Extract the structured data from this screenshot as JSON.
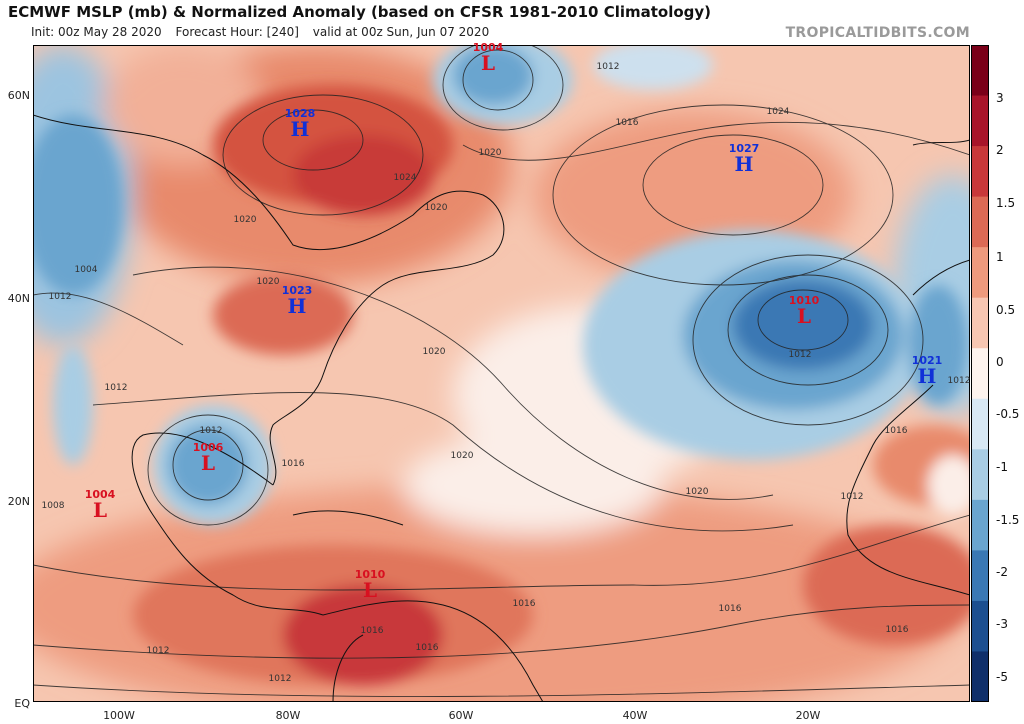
{
  "header": {
    "title": "ECMWF MSLP (mb) & Normalized Anomaly (based on CFSR 1981-2010 Climatology)",
    "init": "Init: 00z May 28 2020",
    "forecast_hour": "Forecast Hour: [240]",
    "valid": "valid at 00z Sun, Jun 07 2020",
    "brand": "TROPICALTIDBITS.COM"
  },
  "axes": {
    "lat_labels": [
      "60N",
      "40N",
      "20N",
      "EQ"
    ],
    "lon_labels": [
      "100W",
      "80W",
      "60W",
      "40W",
      "20W"
    ]
  },
  "colorbar": {
    "labels": [
      "3",
      "2",
      "1.5",
      "1",
      "0.5",
      "0",
      "-0.5",
      "-1",
      "-1.5",
      "-2",
      "-3",
      "-5"
    ],
    "colors": [
      "#7a0019",
      "#a8142a",
      "#c8383a",
      "#dc6a55",
      "#ee9a7d",
      "#f7c6b2",
      "#fdf3ee",
      "#d8e8f4",
      "#a9cde4",
      "#6aa5cf",
      "#3a78b4",
      "#1c4f90",
      "#0f2f6a"
    ]
  },
  "systems": [
    {
      "type": "H",
      "symbol": "H",
      "value": "1028"
    },
    {
      "type": "L",
      "symbol": "L",
      "value": "1004"
    },
    {
      "type": "H",
      "symbol": "H",
      "value": "1027"
    },
    {
      "type": "H",
      "symbol": "H",
      "value": "1023"
    },
    {
      "type": "L",
      "symbol": "L",
      "value": "1010"
    },
    {
      "type": "H",
      "symbol": "H",
      "value": "1021"
    },
    {
      "type": "L",
      "symbol": "L",
      "value": "1006"
    },
    {
      "type": "L",
      "symbol": "L",
      "value": "1004"
    },
    {
      "type": "L",
      "symbol": "L",
      "value": "1010"
    }
  ],
  "isobar_labels": [
    "1012",
    "1016",
    "1024",
    "1020",
    "1020",
    "1020",
    "1024",
    "1004",
    "1012",
    "1020",
    "1012",
    "1020",
    "1012",
    "1016",
    "1020",
    "1020",
    "1012",
    "1012",
    "1016",
    "1016",
    "1016",
    "1016",
    "1012",
    "1012",
    "1008",
    "1012",
    "1016",
    "1016"
  ]
}
